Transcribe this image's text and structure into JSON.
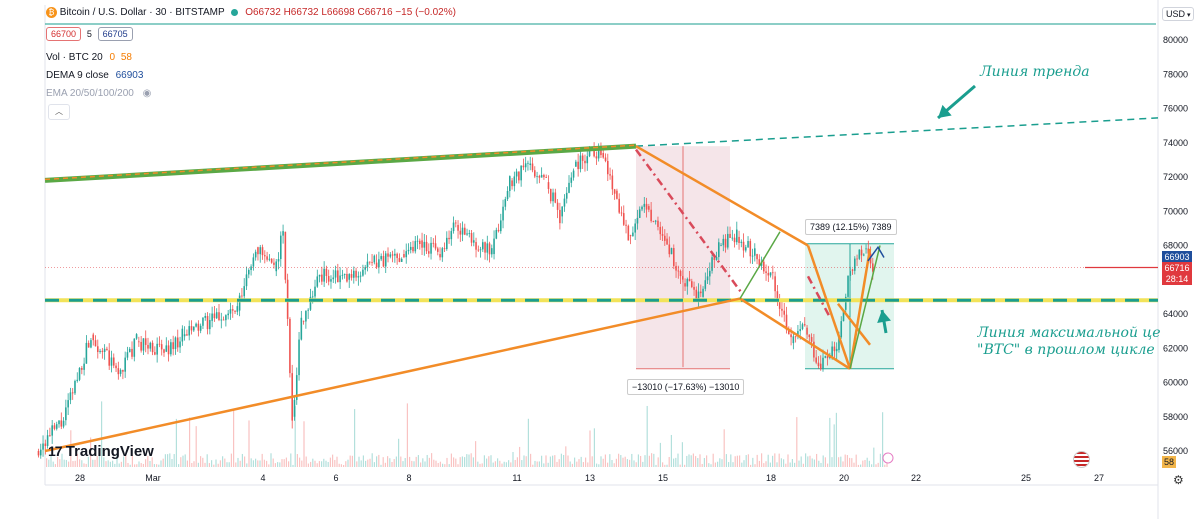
{
  "header": {
    "symbol": "Bitcoin / U.S. Dollar · 30 · BITSTAMP",
    "ohlc": "O66732 H66732 L66698 C66716 −15 (−0.02%)",
    "bid": "66700",
    "spread": "5",
    "ask": "66705",
    "vol_label": "Vol · BTC 20",
    "vol_value_a": "0",
    "vol_value_b": "58",
    "dema_label": "DEMA 9 close",
    "dema_value": "66903",
    "ema_label": "EMA 20/50/100/200"
  },
  "currency": "USD",
  "brand": "TradingView",
  "annotations": {
    "trend_line": "Линия тренда",
    "max_price_line1": "Линия максимальной цены",
    "max_price_line2": "\"BTC\" в прошлом цикле",
    "measure_drop": "−13010 (−17.63%) −13010",
    "measure_rise": "7389 (12.15%) 7389"
  },
  "price_labels": {
    "dema": "66903",
    "last": "66716",
    "countdown": "28:14",
    "volume": "58"
  },
  "colors": {
    "up": "#26a69a",
    "down": "#ef5350",
    "orange": "#f28c28",
    "green": "#5aa845",
    "teal": "#1a9e8f",
    "yellow": "#f2e35a",
    "last_price": "#e0393e",
    "dema": "#1f4e9c"
  },
  "chart_data": {
    "type": "candlestick",
    "y_axis": {
      "ticks": [
        56000,
        58000,
        60000,
        62000,
        64000,
        66000,
        68000,
        70000,
        72000,
        74000,
        76000,
        78000,
        80000
      ],
      "ylim": [
        55000,
        81000
      ]
    },
    "x_axis": {
      "ticks": [
        "28",
        "Mar",
        "4",
        "6",
        "8",
        "11",
        "13",
        "15",
        "18",
        "20",
        "22",
        "25",
        "27"
      ]
    },
    "price_path": [
      [
        0,
        56000
      ],
      [
        3,
        57800
      ],
      [
        6,
        62800
      ],
      [
        9,
        60500
      ],
      [
        11,
        62400
      ],
      [
        14,
        61800
      ],
      [
        16,
        62700
      ],
      [
        19,
        63600
      ],
      [
        22,
        64200
      ],
      [
        24,
        67900
      ],
      [
        26,
        66500
      ],
      [
        27,
        68800
      ],
      [
        28,
        58000
      ],
      [
        29,
        63600
      ],
      [
        31,
        66300
      ],
      [
        34,
        66000
      ],
      [
        37,
        67000
      ],
      [
        40,
        67500
      ],
      [
        42,
        68300
      ],
      [
        44,
        67500
      ],
      [
        46,
        69200
      ],
      [
        48,
        68200
      ],
      [
        50,
        67500
      ],
      [
        52,
        71800
      ],
      [
        54,
        72700
      ],
      [
        56,
        71700
      ],
      [
        57.5,
        69700
      ],
      [
        59,
        72600
      ],
      [
        61,
        73600
      ],
      [
        62,
        73400
      ],
      [
        63.5,
        71200
      ],
      [
        65,
        68600
      ],
      [
        67,
        70300
      ],
      [
        69,
        68400
      ],
      [
        71,
        65800
      ],
      [
        73,
        65000
      ],
      [
        75,
        68000
      ],
      [
        77,
        68500
      ],
      [
        79,
        67500
      ],
      [
        81,
        66200
      ],
      [
        83,
        62300
      ],
      [
        84.5,
        63200
      ],
      [
        86,
        61100
      ],
      [
        88,
        61900
      ],
      [
        89.5,
        66600
      ],
      [
        91,
        67800
      ],
      [
        92,
        66700
      ]
    ],
    "volume_label": "Vol · BTC 20",
    "last_price": 66716,
    "dema_value": 66903,
    "previous_cycle_max": 64800,
    "trend_line": {
      "from": [
        "28",
        72000
      ],
      "to": [
        "27",
        75300
      ]
    },
    "measure_drop": {
      "change": -13010,
      "percent": -17.63
    },
    "measure_rise": {
      "change": 7389,
      "percent": 12.15
    }
  }
}
